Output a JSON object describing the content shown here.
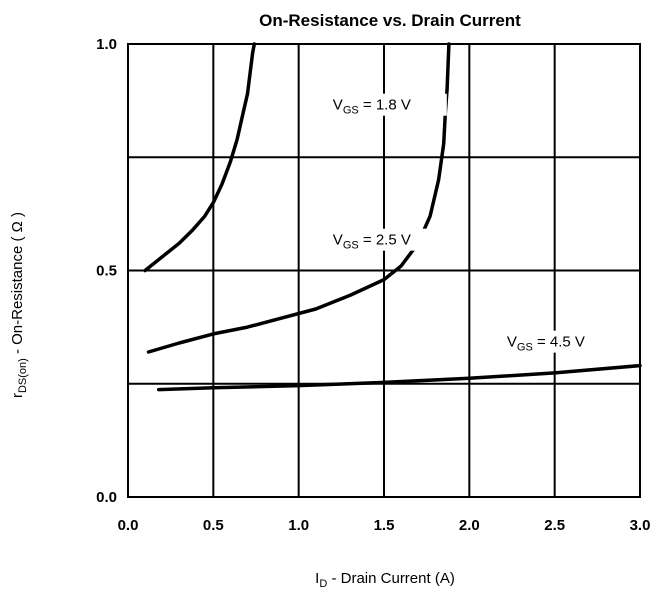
{
  "chart_data": {
    "type": "line",
    "title": "On-Resistance vs. Drain Current",
    "xlabel": {
      "main": "I",
      "sub": "D",
      "rest": "  -  Drain Current (A)"
    },
    "ylabel": {
      "main": "r",
      "sub": "DS(on)",
      "rest": "  -  On-Resistance ( Ω )"
    },
    "xlim": [
      0,
      3.0
    ],
    "ylim": [
      0,
      1.0
    ],
    "xticks": [
      "0.0",
      "0.5",
      "1.0",
      "1.5",
      "2.0",
      "2.5",
      "3.0"
    ],
    "yticks": [
      "0.0",
      "0.5",
      "1.0"
    ],
    "xtick_values": [
      0,
      0.5,
      1.0,
      1.5,
      2.0,
      2.5,
      3.0
    ],
    "ytick_values": [
      0,
      0.5,
      1.0
    ],
    "grid_x": [
      0.5,
      1.0,
      1.5,
      2.0,
      2.5
    ],
    "grid_y": [
      0.25,
      0.5,
      0.75
    ],
    "grid": true,
    "series": [
      {
        "label": {
          "main": "V",
          "sub": "GS",
          "rest": " = 1.8 V"
        },
        "label_at": [
          1.2,
          0.855
        ],
        "x": [
          0.1,
          0.2,
          0.3,
          0.38,
          0.45,
          0.5,
          0.55,
          0.6,
          0.64,
          0.67,
          0.7,
          0.71,
          0.72,
          0.73,
          0.74
        ],
        "y": [
          0.5,
          0.53,
          0.56,
          0.59,
          0.62,
          0.65,
          0.69,
          0.74,
          0.79,
          0.84,
          0.89,
          0.92,
          0.95,
          0.98,
          1.0
        ]
      },
      {
        "label": {
          "main": "V",
          "sub": "GS",
          "rest": " = 2.5 V"
        },
        "label_at": [
          1.2,
          0.557
        ],
        "x": [
          0.12,
          0.3,
          0.5,
          0.7,
          0.9,
          1.1,
          1.3,
          1.5,
          1.6,
          1.7,
          1.77,
          1.82,
          1.85,
          1.86,
          1.87,
          1.875,
          1.88
        ],
        "y": [
          0.32,
          0.34,
          0.36,
          0.375,
          0.395,
          0.415,
          0.445,
          0.48,
          0.51,
          0.56,
          0.62,
          0.7,
          0.78,
          0.85,
          0.9,
          0.95,
          1.0
        ]
      },
      {
        "label": {
          "main": "V",
          "sub": "GS",
          "rest": " = 4.5 V"
        },
        "label_at": [
          2.22,
          0.332
        ],
        "x": [
          0.18,
          0.5,
          1.0,
          1.5,
          2.0,
          2.5,
          3.0
        ],
        "y": [
          0.237,
          0.241,
          0.246,
          0.253,
          0.262,
          0.274,
          0.29
        ]
      }
    ]
  }
}
